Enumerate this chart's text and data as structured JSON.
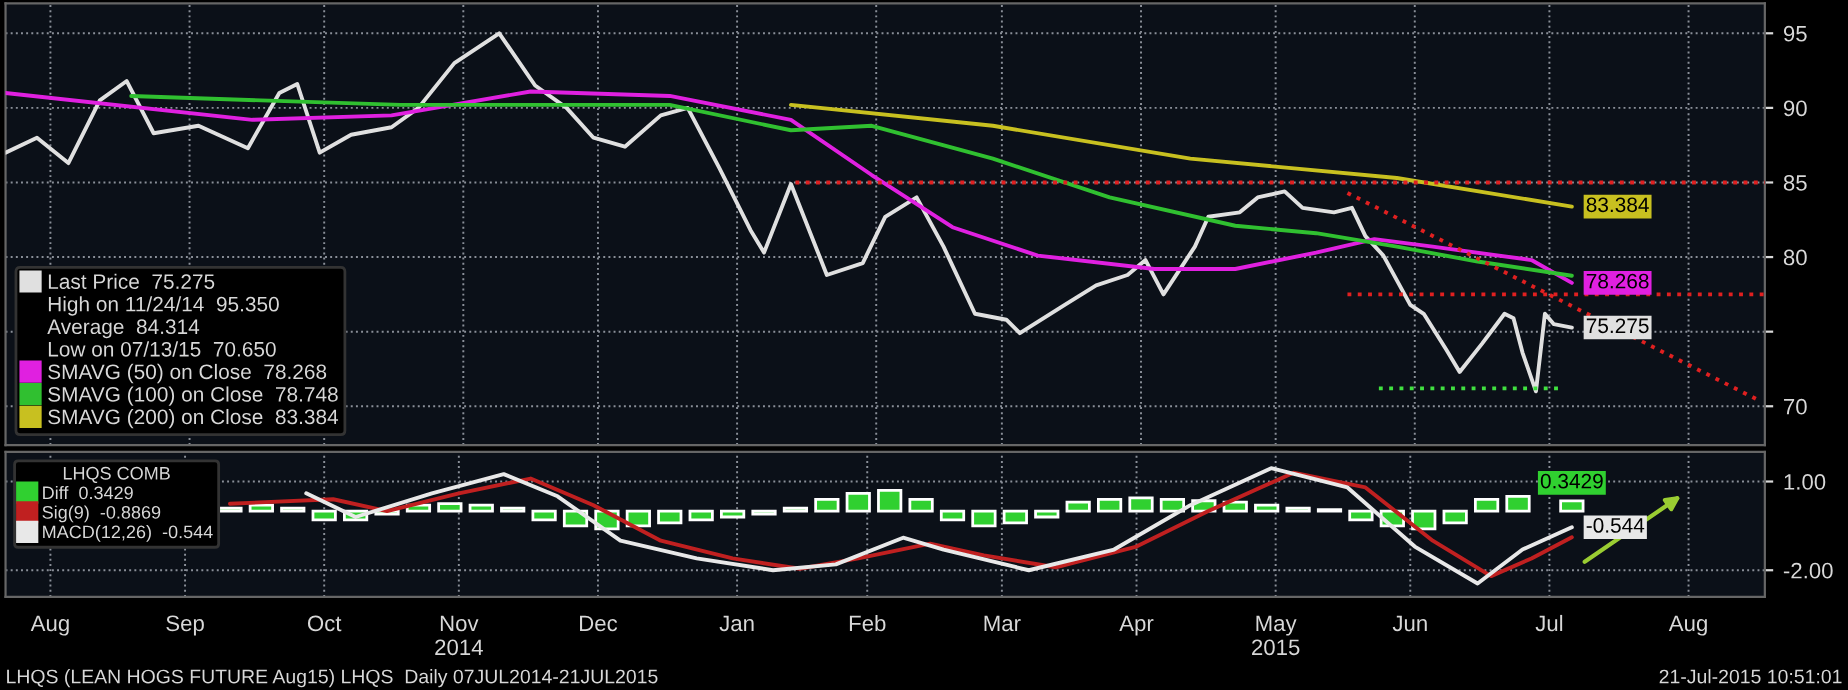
{
  "chart_data": [
    {
      "type": "line",
      "xlim": [
        "2014-08-06",
        "2015-09-02"
      ],
      "ylim": [
        67.4,
        97
      ],
      "yticks": [
        70,
        {
          "value": 75,
          "label": null
        },
        80,
        85,
        90,
        95
      ],
      "tick_labels": "y",
      "grid": true,
      "legend": "bottom left",
      "annotations": [
        "High on 11/24/14  95.350",
        "Average  84.314",
        "Low on 07/13/15  70.650"
      ],
      "series": [
        {
          "name": "Last Price  75.275",
          "color": "#e0e0e0",
          "x": [
            "2014-08-06",
            "2014-08-13",
            "2014-08-20",
            "2014-08-27",
            "2014-09-02",
            "2014-09-08",
            "2014-09-18",
            "2014-09-29",
            "2014-10-06",
            "2014-10-10",
            "2014-10-15",
            "2014-10-22",
            "2014-10-31",
            "2014-11-06",
            "2014-11-14",
            "2014-11-24",
            "2014-12-02",
            "2014-12-09",
            "2014-12-15",
            "2014-12-22",
            "2014-12-30",
            "2015-01-05",
            "2015-01-12",
            "2015-01-19",
            "2015-01-22",
            "2015-01-28",
            "2015-02-05",
            "2015-02-13",
            "2015-02-18",
            "2015-02-25",
            "2015-03-03",
            "2015-03-10",
            "2015-03-17",
            "2015-03-20",
            "2015-03-30",
            "2015-04-06",
            "2015-04-13",
            "2015-04-17",
            "2015-04-21",
            "2015-04-28",
            "2015-05-01",
            "2015-05-08",
            "2015-05-12",
            "2015-05-18",
            "2015-05-22",
            "2015-05-29",
            "2015-06-02",
            "2015-06-05",
            "2015-06-09",
            "2015-06-15",
            "2015-06-18",
            "2015-06-23",
            "2015-06-26",
            "2015-07-01",
            "2015-07-06",
            "2015-07-08",
            "2015-07-10",
            "2015-07-13",
            "2015-07-15",
            "2015-07-17",
            "2015-07-21"
          ],
          "values": [
            87.0,
            88.0,
            86.3,
            90.5,
            91.8,
            88.3,
            88.8,
            87.3,
            91.0,
            91.6,
            87.0,
            88.2,
            88.7,
            90.0,
            93.0,
            95.0,
            91.5,
            90.0,
            88.0,
            87.4,
            89.5,
            90.0,
            86.0,
            81.8,
            80.3,
            84.9,
            78.8,
            79.6,
            82.7,
            84.0,
            80.7,
            76.2,
            75.8,
            74.9,
            76.8,
            78.1,
            78.8,
            79.8,
            77.5,
            80.7,
            82.7,
            83.0,
            84.0,
            84.4,
            83.3,
            83.0,
            83.3,
            81.4,
            80.1,
            76.8,
            76.2,
            73.8,
            72.3,
            74.2,
            76.2,
            75.9,
            73.6,
            71.0,
            76.2,
            75.5,
            75.275
          ],
          "value_labels": [
            null,
            null,
            null,
            null,
            null,
            null,
            null,
            null,
            null,
            null,
            null,
            null,
            null,
            null,
            null,
            null,
            null,
            null,
            null,
            null,
            null,
            null,
            null,
            null,
            null,
            null,
            null,
            null,
            null,
            null,
            null,
            null,
            null,
            null,
            null,
            null,
            null,
            null,
            null,
            null,
            null,
            null,
            null,
            null,
            null,
            null,
            null,
            null,
            null,
            null,
            null,
            null,
            null,
            null,
            null,
            null,
            null,
            null,
            null,
            null,
            "75.275"
          ]
        },
        {
          "name": "SMAVG (50) on Close  78.268",
          "color": "#e020e0",
          "x": [
            "2014-08-06",
            "2014-09-30",
            "2014-10-31",
            "2014-12-01",
            "2015-01-01",
            "2015-01-28",
            "2015-02-15",
            "2015-03-05",
            "2015-03-24",
            "2015-04-19",
            "2015-05-07",
            "2015-05-25",
            "2015-06-07",
            "2015-06-20",
            "2015-07-12",
            "2015-07-21"
          ],
          "values": [
            91.0,
            89.2,
            89.5,
            91.1,
            90.8,
            89.2,
            85.5,
            82.0,
            80.1,
            79.2,
            79.2,
            80.3,
            81.2,
            80.7,
            79.8,
            78.268
          ],
          "value_labels": [
            null,
            null,
            null,
            null,
            null,
            null,
            null,
            null,
            null,
            null,
            null,
            null,
            null,
            null,
            null,
            "78.268"
          ]
        },
        {
          "name": "SMAVG (100) on Close  78.748",
          "color": "#30c030",
          "x": [
            "2014-09-03",
            "2014-10-02",
            "2014-11-02",
            "2014-12-07",
            "2015-01-01",
            "2015-01-28",
            "2015-02-15",
            "2015-03-14",
            "2015-04-09",
            "2015-05-07",
            "2015-05-25",
            "2015-06-12",
            "2015-06-30",
            "2015-07-21"
          ],
          "values": [
            90.8,
            90.5,
            90.2,
            90.2,
            90.2,
            88.5,
            88.8,
            86.6,
            84.0,
            82.1,
            81.6,
            80.7,
            79.7,
            78.748
          ]
        },
        {
          "name": "SMAVG (200) on Close  83.384",
          "color": "#c8c020",
          "x": [
            "2015-01-28",
            "2015-03-14",
            "2015-04-27",
            "2015-06-12",
            "2015-07-21"
          ],
          "values": [
            90.2,
            88.8,
            86.6,
            85.3,
            83.384
          ],
          "value_labels": [
            null,
            null,
            null,
            null,
            "83.384"
          ]
        },
        {
          "color": "#e02020",
          "line_style": "dotted",
          "x": [
            "2015-01-29",
            "2015-09-02"
          ],
          "values": [
            85,
            85
          ]
        },
        {
          "color": "#e02020",
          "line_style": "dotted",
          "x": [
            "2015-06-01",
            "2015-09-02"
          ],
          "values": [
            77.5,
            77.5
          ]
        },
        {
          "color": "#40e040",
          "line_style": "dotted",
          "x": [
            "2015-06-08",
            "2015-07-18"
          ],
          "values": [
            71.2,
            71.2
          ]
        },
        {
          "color": "#e02020",
          "line_style": "dotted",
          "x": [
            "2015-06-01",
            "2015-08-31"
          ],
          "values": [
            84.3,
            70.5
          ]
        }
      ]
    },
    {
      "type": "line",
      "xlim": [
        "2014-08-06",
        "2015-09-02"
      ],
      "ylim": [
        -2.9,
        2.0
      ],
      "yticks": [
        {
          "value": 1,
          "label": "1.00"
        },
        {
          "value": -2,
          "label": "-2.00"
        }
      ],
      "xticks": [
        {
          "value": "2014-08-16",
          "label": "Aug"
        },
        {
          "value": "2014-09-15",
          "label": "Sep"
        },
        {
          "value": "2014-10-16",
          "label": "Oct"
        },
        {
          "value": "2014-11-15",
          "label": "Nov\n2014"
        },
        {
          "value": "2014-12-16",
          "label": "Dec"
        },
        {
          "value": "2015-01-16",
          "label": "Jan"
        },
        {
          "value": "2015-02-14",
          "label": "Feb"
        },
        {
          "value": "2015-03-16",
          "label": "Mar"
        },
        {
          "value": "2015-04-15",
          "label": "Apr"
        },
        {
          "value": "2015-05-16",
          "label": "May\n2015"
        },
        {
          "value": "2015-06-15",
          "label": "Jun"
        },
        {
          "value": "2015-07-16",
          "label": "Jul"
        },
        {
          "value": "2015-08-16",
          "label": "Aug"
        }
      ],
      "grid": true,
      "legend": "top left",
      "legend_title": "LHQS COMB",
      "annotations": [
        "LHQS (LEAN HOGS FUTURE Aug15) LHQS  Daily 07JUL2014-21JUL2015",
        "21-Jul-2015 10:51:01"
      ],
      "series": [
        {
          "name": "Diff  0.3429",
          "type": "bar",
          "color": "#30d030",
          "x": [
            "2014-09-25",
            "2014-10-02",
            "2014-10-09",
            "2014-10-16",
            "2014-10-23",
            "2014-10-30",
            "2014-11-06",
            "2014-11-13",
            "2014-11-20",
            "2014-11-27",
            "2014-12-04",
            "2014-12-11",
            "2014-12-18",
            "2014-12-25",
            "2015-01-01",
            "2015-01-08",
            "2015-01-15",
            "2015-01-22",
            "2015-01-29",
            "2015-02-05",
            "2015-02-12",
            "2015-02-19",
            "2015-02-26",
            "2015-03-05",
            "2015-03-12",
            "2015-03-19",
            "2015-03-26",
            "2015-04-02",
            "2015-04-09",
            "2015-04-16",
            "2015-04-23",
            "2015-04-30",
            "2015-05-07",
            "2015-05-14",
            "2015-05-21",
            "2015-05-28",
            "2015-06-04",
            "2015-06-11",
            "2015-06-18",
            "2015-06-25",
            "2015-07-02",
            "2015-07-09",
            "2015-07-21"
          ],
          "values": [
            0.1,
            0.2,
            0.1,
            -0.3,
            -0.3,
            -0.1,
            0.2,
            0.25,
            0.2,
            0.1,
            -0.3,
            -0.5,
            -0.6,
            -0.5,
            -0.4,
            -0.3,
            -0.2,
            -0.1,
            0.1,
            0.4,
            0.6,
            0.7,
            0.4,
            -0.3,
            -0.5,
            -0.4,
            -0.2,
            0.3,
            0.4,
            0.45,
            0.4,
            0.35,
            0.3,
            0.2,
            0.1,
            0.05,
            -0.3,
            -0.5,
            -0.6,
            -0.4,
            0.4,
            0.5,
            0.3429
          ],
          "value_labels": [
            null,
            null,
            null,
            null,
            null,
            null,
            null,
            null,
            null,
            null,
            null,
            null,
            null,
            null,
            null,
            null,
            null,
            null,
            null,
            null,
            null,
            null,
            null,
            null,
            null,
            null,
            null,
            null,
            null,
            null,
            null,
            null,
            null,
            null,
            null,
            null,
            null,
            null,
            null,
            null,
            null,
            null,
            "0.3429"
          ]
        },
        {
          "name": "Sig(9)  -0.8869",
          "color": "#c02020",
          "x": [
            "2014-09-25",
            "2014-10-18",
            "2014-10-30",
            "2014-11-15",
            "2014-12-01",
            "2014-12-15",
            "2014-12-30",
            "2015-01-15",
            "2015-01-30",
            "2015-02-12",
            "2015-02-28",
            "2015-03-12",
            "2015-03-28",
            "2015-04-15",
            "2015-05-01",
            "2015-05-20",
            "2015-06-05",
            "2015-06-20",
            "2015-07-03",
            "2015-07-12",
            "2015-07-21"
          ],
          "values": [
            0.25,
            0.4,
            0.0,
            0.6,
            1.1,
            0.2,
            -1.0,
            -1.6,
            -1.95,
            -1.6,
            -1.1,
            -1.5,
            -1.9,
            -1.2,
            0.0,
            1.3,
            0.8,
            -1.0,
            -2.2,
            -1.6,
            -0.8869
          ]
        },
        {
          "name": "MACD(12,26)  -0.544",
          "color": "#e8e8e8",
          "x": [
            "2014-10-12",
            "2014-10-23",
            "2014-11-09",
            "2014-11-25",
            "2014-12-07",
            "2014-12-21",
            "2015-01-07",
            "2015-01-24",
            "2015-02-07",
            "2015-02-22",
            "2015-03-03",
            "2015-03-22",
            "2015-04-10",
            "2015-04-27",
            "2015-05-15",
            "2015-06-01",
            "2015-06-16",
            "2015-06-30",
            "2015-07-10",
            "2015-07-21"
          ],
          "values": [
            0.6,
            -0.2,
            0.6,
            1.25,
            0.5,
            -1.0,
            -1.6,
            -2.0,
            -1.8,
            -0.9,
            -1.3,
            -2.0,
            -1.3,
            0.2,
            1.45,
            0.8,
            -1.2,
            -2.45,
            -1.3,
            -0.544
          ],
          "value_labels": [
            null,
            null,
            null,
            null,
            null,
            null,
            null,
            null,
            null,
            null,
            null,
            null,
            null,
            null,
            null,
            null,
            null,
            null,
            null,
            "-0.544"
          ]
        }
      ]
    }
  ]
}
